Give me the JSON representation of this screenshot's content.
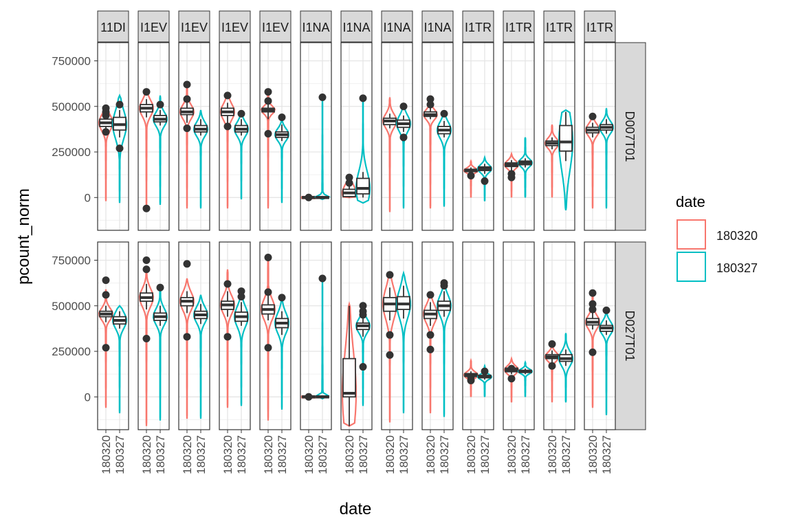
{
  "chart_data": {
    "type": "violin",
    "xlabel": "date",
    "ylabel": "pcount_norm",
    "y_ticks": [
      "0",
      "250000",
      "500000",
      "750000"
    ],
    "y_tick_values": [
      0,
      250000,
      500000,
      750000
    ],
    "ylim": [
      -180000,
      850000
    ],
    "x_categories": [
      "180320",
      "180327"
    ],
    "legend": {
      "title": "date",
      "entries": [
        {
          "label": "180320",
          "color": "#F8766D"
        },
        {
          "label": "180327",
          "color": "#00BFC4"
        }
      ],
      "placement": "right"
    },
    "panel_columns": [
      "11DI",
      "I1EV",
      "I1EV",
      "I1EV",
      "I1EV",
      "I1NA",
      "I1NA",
      "I1NA",
      "I1NA",
      "I1TR",
      "I1TR",
      "I1TR",
      "I1TR"
    ],
    "panel_rows": [
      "D007T01",
      "D027T01"
    ],
    "panels": [
      [
        {
          "s": [
            {
              "med": 410000,
              "q1": 390000,
              "q3": 430000,
              "wlo": 360000,
              "whi": 450000,
              "min": -20000,
              "max": 490000,
              "out": [
                360000,
                450000,
                470000,
                490000
              ]
            },
            {
              "med": 400000,
              "q1": 370000,
              "q3": 440000,
              "wlo": 330000,
              "whi": 480000,
              "min": -30000,
              "max": 560000,
              "out": [
                270000,
                510000
              ]
            }
          ]
        },
        {
          "s": [
            {
              "med": 490000,
              "q1": 470000,
              "q3": 510000,
              "wlo": 440000,
              "whi": 540000,
              "min": -60000,
              "max": 580000,
              "out": [
                -60000,
                580000
              ]
            },
            {
              "med": 430000,
              "q1": 415000,
              "q3": 450000,
              "wlo": 395000,
              "whi": 480000,
              "min": -40000,
              "max": 560000,
              "out": [
                510000
              ]
            }
          ]
        },
        {
          "s": [
            {
              "med": 470000,
              "q1": 455000,
              "q3": 490000,
              "wlo": 410000,
              "whi": 520000,
              "min": -60000,
              "max": 620000,
              "out": [
                380000,
                540000,
                620000
              ]
            },
            {
              "med": 375000,
              "q1": 360000,
              "q3": 395000,
              "wlo": 340000,
              "whi": 430000,
              "min": -60000,
              "max": 480000,
              "out": []
            }
          ]
        },
        {
          "s": [
            {
              "med": 470000,
              "q1": 450000,
              "q3": 490000,
              "wlo": 410000,
              "whi": 520000,
              "min": -60000,
              "max": 560000,
              "out": [
                390000,
                560000
              ]
            },
            {
              "med": 375000,
              "q1": 360000,
              "q3": 395000,
              "wlo": 340000,
              "whi": 430000,
              "min": -10000,
              "max": 460000,
              "out": [
                460000
              ]
            }
          ]
        },
        {
          "s": [
            {
              "med": 480000,
              "q1": 470000,
              "q3": 490000,
              "wlo": 430000,
              "whi": 520000,
              "min": -60000,
              "max": 580000,
              "out": [
                350000,
                530000,
                580000
              ]
            },
            {
              "med": 345000,
              "q1": 330000,
              "q3": 360000,
              "wlo": 310000,
              "whi": 400000,
              "min": -30000,
              "max": 450000,
              "out": [
                440000
              ]
            }
          ]
        },
        {
          "s": [
            {
              "med": 0,
              "q1": -5000,
              "q3": 5000,
              "wlo": -5000,
              "whi": 5000,
              "min": -5000,
              "max": 5000,
              "out": [
                0
              ]
            },
            {
              "med": 0,
              "q1": -5000,
              "q3": 5000,
              "wlo": -5000,
              "whi": 5000,
              "min": -10000,
              "max": 550000,
              "out": [
                550000
              ]
            }
          ]
        },
        {
          "s": [
            {
              "med": 25000,
              "q1": 5000,
              "q3": 45000,
              "wlo": 0,
              "whi": 70000,
              "min": 0,
              "max": 115000,
              "out": [
                80000,
                110000
              ]
            },
            {
              "med": 50000,
              "q1": 20000,
              "q3": 105000,
              "wlo": 0,
              "whi": 140000,
              "min": -30000,
              "max": 545000,
              "out": [
                545000
              ]
            }
          ]
        },
        {
          "s": [
            {
              "med": 420000,
              "q1": 400000,
              "q3": 435000,
              "wlo": 380000,
              "whi": 460000,
              "min": -80000,
              "max": 550000,
              "out": []
            },
            {
              "med": 405000,
              "q1": 385000,
              "q3": 425000,
              "wlo": 360000,
              "whi": 450000,
              "min": -60000,
              "max": 500000,
              "out": [
                330000,
                500000
              ]
            }
          ]
        },
        {
          "s": [
            {
              "med": 455000,
              "q1": 445000,
              "q3": 470000,
              "wlo": 430000,
              "whi": 490000,
              "min": -60000,
              "max": 560000,
              "out": [
                510000,
                540000
              ]
            },
            {
              "med": 370000,
              "q1": 350000,
              "q3": 390000,
              "wlo": 330000,
              "whi": 420000,
              "min": -50000,
              "max": 470000,
              "out": [
                460000
              ]
            }
          ]
        },
        {
          "s": [
            {
              "med": 148000,
              "q1": 142000,
              "q3": 155000,
              "wlo": 130000,
              "whi": 165000,
              "min": 0,
              "max": 200000,
              "out": [
                120000
              ]
            },
            {
              "med": 158000,
              "q1": 148000,
              "q3": 168000,
              "wlo": 130000,
              "whi": 185000,
              "min": -20000,
              "max": 220000,
              "out": [
                90000
              ]
            }
          ]
        },
        {
          "s": [
            {
              "med": 180000,
              "q1": 170000,
              "q3": 190000,
              "wlo": 150000,
              "whi": 205000,
              "min": 0,
              "max": 240000,
              "out": [
                110000,
                130000
              ]
            },
            {
              "med": 190000,
              "q1": 180000,
              "q3": 200000,
              "wlo": 165000,
              "whi": 215000,
              "min": 0,
              "max": 330000,
              "out": []
            }
          ]
        },
        {
          "s": [
            {
              "med": 298000,
              "q1": 285000,
              "q3": 310000,
              "wlo": 265000,
              "whi": 330000,
              "min": 0,
              "max": 400000,
              "out": []
            },
            {
              "med": 305000,
              "q1": 255000,
              "q3": 395000,
              "wlo": 200000,
              "whi": 470000,
              "min": -70000,
              "max": 480000,
              "out": []
            }
          ]
        },
        {
          "s": [
            {
              "med": 370000,
              "q1": 355000,
              "q3": 385000,
              "wlo": 330000,
              "whi": 410000,
              "min": -60000,
              "max": 440000,
              "out": [
                445000
              ]
            },
            {
              "med": 385000,
              "q1": 370000,
              "q3": 400000,
              "wlo": 350000,
              "whi": 430000,
              "min": -60000,
              "max": 490000,
              "out": []
            }
          ]
        }
      ],
      [
        {
          "s": [
            {
              "med": 455000,
              "q1": 440000,
              "q3": 470000,
              "wlo": 410000,
              "whi": 500000,
              "min": -60000,
              "max": 590000,
              "out": [
                270000,
                560000,
                640000
              ]
            },
            {
              "med": 420000,
              "q1": 400000,
              "q3": 440000,
              "wlo": 375000,
              "whi": 470000,
              "min": -90000,
              "max": 500000,
              "out": []
            }
          ]
        },
        {
          "s": [
            {
              "med": 545000,
              "q1": 525000,
              "q3": 570000,
              "wlo": 480000,
              "whi": 620000,
              "min": -160000,
              "max": 700000,
              "out": [
                320000,
                700000,
                750000
              ]
            },
            {
              "med": 440000,
              "q1": 420000,
              "q3": 460000,
              "wlo": 390000,
              "whi": 500000,
              "min": -130000,
              "max": 600000,
              "out": [
                600000
              ]
            }
          ]
        },
        {
          "s": [
            {
              "med": 525000,
              "q1": 500000,
              "q3": 545000,
              "wlo": 460000,
              "whi": 580000,
              "min": -120000,
              "max": 650000,
              "out": [
                330000,
                730000
              ]
            },
            {
              "med": 450000,
              "q1": 430000,
              "q3": 470000,
              "wlo": 400000,
              "whi": 510000,
              "min": -120000,
              "max": 560000,
              "out": []
            }
          ]
        },
        {
          "s": [
            {
              "med": 505000,
              "q1": 480000,
              "q3": 525000,
              "wlo": 440000,
              "whi": 580000,
              "min": -60000,
              "max": 700000,
              "out": [
                330000,
                620000
              ]
            },
            {
              "med": 440000,
              "q1": 415000,
              "q3": 465000,
              "wlo": 390000,
              "whi": 520000,
              "min": -50000,
              "max": 580000,
              "out": [
                550000,
                580000
              ]
            }
          ]
        },
        {
          "s": [
            {
              "med": 480000,
              "q1": 455000,
              "q3": 505000,
              "wlo": 420000,
              "whi": 560000,
              "min": -130000,
              "max": 770000,
              "out": [
                270000,
                575000,
                765000
              ]
            },
            {
              "med": 405000,
              "q1": 380000,
              "q3": 430000,
              "wlo": 340000,
              "whi": 470000,
              "min": -70000,
              "max": 550000,
              "out": [
                545000
              ]
            }
          ]
        },
        {
          "s": [
            {
              "med": 0,
              "q1": -5000,
              "q3": 5000,
              "wlo": -5000,
              "whi": 5000,
              "min": -5000,
              "max": 5000,
              "out": [
                0
              ]
            },
            {
              "med": 0,
              "q1": -5000,
              "q3": 5000,
              "wlo": -5000,
              "whi": 5000,
              "min": -10000,
              "max": 650000,
              "out": [
                650000
              ]
            }
          ]
        },
        {
          "s": [
            {
              "med": 20000,
              "q1": 0,
              "q3": 210000,
              "wlo": -160000,
              "whi": 500000,
              "min": -160000,
              "max": 510000,
              "out": []
            },
            {
              "med": 390000,
              "q1": 370000,
              "q3": 405000,
              "wlo": 330000,
              "whi": 440000,
              "min": -50000,
              "max": 520000,
              "out": [
                165000,
                450000,
                470000,
                500000
              ]
            }
          ]
        },
        {
          "s": [
            {
              "med": 510000,
              "q1": 470000,
              "q3": 545000,
              "wlo": 420000,
              "whi": 600000,
              "min": -140000,
              "max": 680000,
              "out": [
                230000,
                340000,
                670000
              ]
            },
            {
              "med": 510000,
              "q1": 480000,
              "q3": 550000,
              "wlo": 430000,
              "whi": 610000,
              "min": -90000,
              "max": 680000,
              "out": []
            }
          ]
        },
        {
          "s": [
            {
              "med": 455000,
              "q1": 430000,
              "q3": 475000,
              "wlo": 390000,
              "whi": 520000,
              "min": -90000,
              "max": 560000,
              "out": [
                260000,
                340000,
                560000
              ]
            },
            {
              "med": 500000,
              "q1": 475000,
              "q3": 525000,
              "wlo": 440000,
              "whi": 580000,
              "min": -110000,
              "max": 640000,
              "out": [
                610000,
                625000
              ]
            }
          ]
        },
        {
          "s": [
            {
              "med": 120000,
              "q1": 112000,
              "q3": 128000,
              "wlo": 100000,
              "whi": 140000,
              "min": 0,
              "max": 200000,
              "out": [
                90000,
                110000
              ]
            },
            {
              "med": 110000,
              "q1": 105000,
              "q3": 118000,
              "wlo": 95000,
              "whi": 130000,
              "min": 0,
              "max": 170000,
              "out": [
                140000
              ]
            }
          ]
        },
        {
          "s": [
            {
              "med": 148000,
              "q1": 138000,
              "q3": 158000,
              "wlo": 125000,
              "whi": 170000,
              "min": -30000,
              "max": 210000,
              "out": [
                100000,
                155000
              ]
            },
            {
              "med": 140000,
              "q1": 134000,
              "q3": 146000,
              "wlo": 125000,
              "whi": 155000,
              "min": 0,
              "max": 190000,
              "out": []
            }
          ]
        },
        {
          "s": [
            {
              "med": 220000,
              "q1": 210000,
              "q3": 232000,
              "wlo": 190000,
              "whi": 255000,
              "min": -30000,
              "max": 290000,
              "out": [
                170000,
                290000
              ]
            },
            {
              "med": 210000,
              "q1": 195000,
              "q3": 232000,
              "wlo": 170000,
              "whi": 260000,
              "min": -30000,
              "max": 350000,
              "out": []
            }
          ]
        },
        {
          "s": [
            {
              "med": 410000,
              "q1": 395000,
              "q3": 430000,
              "wlo": 370000,
              "whi": 460000,
              "min": -60000,
              "max": 580000,
              "out": [
                245000,
                480000,
                510000,
                570000
              ]
            },
            {
              "med": 378000,
              "q1": 360000,
              "q3": 392000,
              "wlo": 340000,
              "whi": 420000,
              "min": -100000,
              "max": 480000,
              "out": [
                475000
              ]
            }
          ]
        }
      ]
    ]
  }
}
